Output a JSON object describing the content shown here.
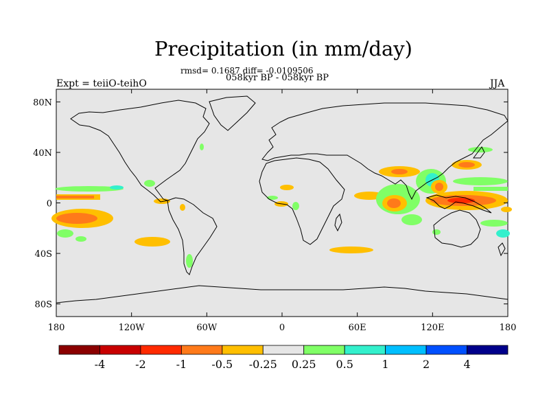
{
  "title": "Precipitation (in mm/day)",
  "subtitle_line1": "rmsd= 0.1687 diff= -0.0109506",
  "subtitle_line2": "058kyr BP - 058kyr BP",
  "left_label": "Expt = teiiO-teihO",
  "right_label": "JJA",
  "map": {
    "projection": "cylindrical-equidistant",
    "lon_range": [
      -180,
      180
    ],
    "lat_range": [
      -90,
      90
    ],
    "background_color": "#e6e6e6",
    "coastline_color": "#000000",
    "lon_ticks": [
      {
        "lon": -180,
        "label": "180"
      },
      {
        "lon": -120,
        "label": "120W"
      },
      {
        "lon": -60,
        "label": "60W"
      },
      {
        "lon": 0,
        "label": "0"
      },
      {
        "lon": 60,
        "label": "60E"
      },
      {
        "lon": 120,
        "label": "120E"
      },
      {
        "lon": 180,
        "label": "180"
      }
    ],
    "lat_ticks": [
      {
        "lat": 80,
        "label": "80N"
      },
      {
        "lat": 40,
        "label": "40N"
      },
      {
        "lat": 0,
        "label": "0"
      },
      {
        "lat": -40,
        "label": "40S"
      },
      {
        "lat": -80,
        "label": "80S"
      }
    ]
  },
  "colorbar": {
    "colors": [
      "#8b0000",
      "#c80000",
      "#ff2a00",
      "#ff7a1a",
      "#ffbf00",
      "#e6e6e6",
      "#80ff66",
      "#33f0cc",
      "#00bfff",
      "#0050ff",
      "#00008b"
    ],
    "labels": [
      "-4",
      "-2",
      "-1",
      "-0.5",
      "-0.25",
      "0.25",
      "0.5",
      "1",
      "2",
      "4"
    ]
  }
}
